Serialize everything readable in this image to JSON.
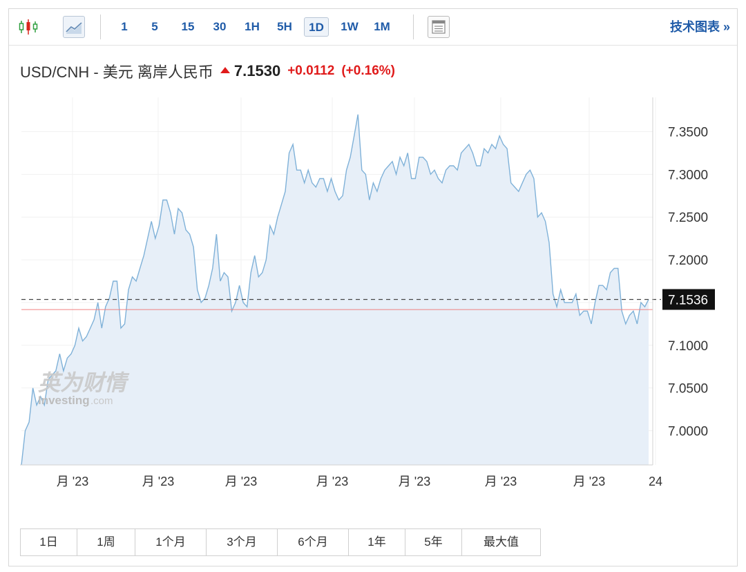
{
  "toolbar": {
    "icons": [
      "candlestick-icon",
      "line-chart-icon",
      "table-icon"
    ],
    "intervals": [
      "1",
      "5",
      "15",
      "30",
      "1H",
      "5H",
      "1D",
      "1W",
      "1M"
    ],
    "active_interval": "1D",
    "tech_chart_label": "技术图表 »"
  },
  "header": {
    "pair": "USD/CNH - 美元 离岸人民币",
    "price": "7.1530",
    "change": "+0.0112",
    "change_pct": "(+0.16%)",
    "up_color": "#e01a1a"
  },
  "watermark": {
    "cn": "英为财情",
    "en": "Investing",
    "suffix": ".com"
  },
  "range_buttons": [
    "1日",
    "1周",
    "1个月",
    "3个月",
    "6个月",
    "1年",
    "5年",
    "最大值"
  ],
  "chart_data": {
    "type": "area",
    "line_color": "#7fb1d8",
    "fill_color": "#e7eff8",
    "x_tick_labels": [
      "月 '23",
      "月 '23",
      "月 '23",
      "月 '23",
      "月 '23",
      "月 '23",
      "月 '23",
      "24"
    ],
    "y_ticks": [
      "7.3500",
      "7.3000",
      "7.2500",
      "7.2000",
      "7.1500",
      "7.1000",
      "7.0500",
      "7.0000"
    ],
    "ylim": [
      6.96,
      7.39
    ],
    "last_value_label": "7.1536",
    "last_value": 7.1536,
    "reference_line": 7.1418,
    "reference_color": "#f08080",
    "values": [
      6.96,
      7.0,
      7.01,
      7.05,
      7.03,
      7.04,
      7.03,
      7.06,
      7.065,
      7.07,
      7.09,
      7.07,
      7.085,
      7.09,
      7.1,
      7.12,
      7.105,
      7.11,
      7.12,
      7.13,
      7.15,
      7.12,
      7.145,
      7.155,
      7.175,
      7.175,
      7.12,
      7.125,
      7.165,
      7.18,
      7.175,
      7.19,
      7.205,
      7.225,
      7.245,
      7.225,
      7.24,
      7.27,
      7.27,
      7.255,
      7.23,
      7.26,
      7.255,
      7.235,
      7.23,
      7.215,
      7.165,
      7.15,
      7.155,
      7.17,
      7.19,
      7.23,
      7.175,
      7.185,
      7.18,
      7.14,
      7.15,
      7.17,
      7.15,
      7.145,
      7.185,
      7.205,
      7.18,
      7.185,
      7.2,
      7.24,
      7.23,
      7.25,
      7.265,
      7.28,
      7.325,
      7.335,
      7.305,
      7.305,
      7.29,
      7.305,
      7.29,
      7.285,
      7.295,
      7.295,
      7.28,
      7.295,
      7.28,
      7.27,
      7.275,
      7.305,
      7.32,
      7.345,
      7.37,
      7.305,
      7.3,
      7.27,
      7.29,
      7.28,
      7.295,
      7.305,
      7.31,
      7.315,
      7.3,
      7.32,
      7.31,
      7.325,
      7.295,
      7.295,
      7.32,
      7.32,
      7.315,
      7.3,
      7.305,
      7.295,
      7.29,
      7.305,
      7.31,
      7.31,
      7.305,
      7.325,
      7.33,
      7.335,
      7.325,
      7.31,
      7.31,
      7.33,
      7.325,
      7.335,
      7.33,
      7.345,
      7.335,
      7.33,
      7.29,
      7.285,
      7.28,
      7.29,
      7.3,
      7.305,
      7.295,
      7.25,
      7.255,
      7.245,
      7.22,
      7.16,
      7.145,
      7.165,
      7.15,
      7.15,
      7.15,
      7.16,
      7.135,
      7.14,
      7.14,
      7.125,
      7.15,
      7.17,
      7.17,
      7.165,
      7.185,
      7.19,
      7.19,
      7.14,
      7.125,
      7.135,
      7.14,
      7.125,
      7.15,
      7.145,
      7.1536
    ]
  }
}
